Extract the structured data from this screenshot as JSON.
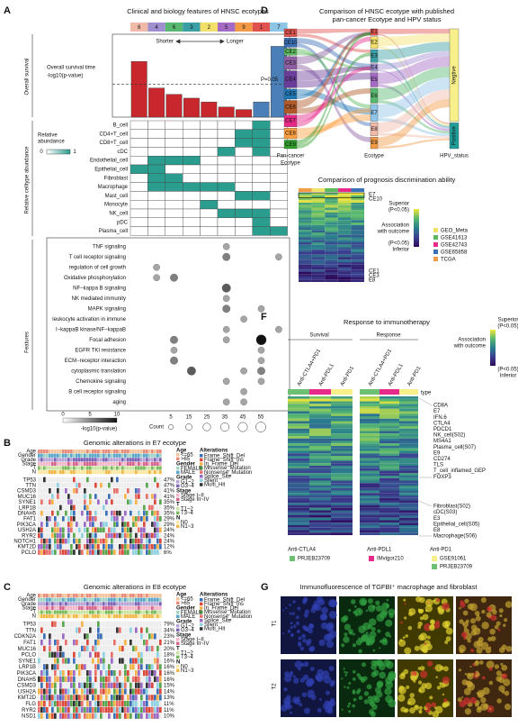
{
  "figure_labels": [
    "A",
    "B",
    "C",
    "D",
    "E",
    "F",
    "G"
  ],
  "a": {
    "title": "Clinical and biology features of HNSC ecotypes",
    "ecotypes": [
      "8",
      "4",
      "6",
      "3",
      "2",
      "5",
      "9",
      "1",
      "7"
    ],
    "ecotype_colors": [
      "#f0b9a8",
      "#9f8fd0",
      "#58b86f",
      "#3a9ea5",
      "#f3e06a",
      "#a46ac4",
      "#f29a45",
      "#e0524e",
      "#8ec4e6"
    ],
    "section_labels": [
      "Overall survival",
      "Relative celltype abundance",
      "Features"
    ],
    "survival": {
      "axis_label": [
        "Overall survival time",
        "-log10(p-value)"
      ],
      "shorter": "Shorter",
      "longer": "Longer",
      "threshold_label": "P=0.05",
      "threshold": 1.3,
      "values": [
        2.2,
        1.15,
        0.9,
        0.75,
        0.6,
        0.4,
        0.3,
        0.6,
        2.8
      ],
      "colors": [
        "#c8282d",
        "#c8282d",
        "#c8282d",
        "#c8282d",
        "#c8282d",
        "#c8282d",
        "#c8282d",
        "#4a7fb8",
        "#4a7fb8"
      ]
    },
    "abundance": {
      "legend_title": [
        "Relative",
        "abundance"
      ],
      "legend_min": 0,
      "legend_max": 1,
      "color": "#2a9d8f",
      "cell_types": [
        "B_cell",
        "CD4+T_cell",
        "CD8+T_cell",
        "cDC",
        "Endothelial_cell",
        "Epithelial_cell",
        "Fibroblast",
        "Macrophage",
        "Mast_cell",
        "Monocyte",
        "NK_cell",
        "pDC",
        "Plasma_cell"
      ],
      "matrix": [
        [
          0,
          0,
          0,
          0,
          0,
          0,
          0,
          1,
          0
        ],
        [
          0,
          0,
          0,
          0,
          0,
          0,
          1,
          1,
          0
        ],
        [
          0,
          0,
          0,
          0,
          0,
          0,
          1,
          1,
          0
        ],
        [
          0,
          0,
          0,
          0,
          0,
          1,
          0,
          1,
          0
        ],
        [
          0,
          1,
          1,
          1,
          0,
          0,
          0,
          0,
          0
        ],
        [
          1,
          1,
          0,
          0,
          0,
          0,
          0,
          0,
          0
        ],
        [
          0,
          1,
          1,
          0,
          0,
          0,
          0,
          0,
          0
        ],
        [
          0,
          1,
          1,
          1,
          1,
          1,
          0,
          0,
          0
        ],
        [
          0,
          0,
          0,
          0,
          0,
          0,
          1,
          1,
          0
        ],
        [
          0,
          0,
          0,
          0,
          1,
          0,
          0,
          0,
          0
        ],
        [
          0,
          0,
          0,
          0,
          0,
          1,
          1,
          1,
          0
        ],
        [
          0,
          0,
          0,
          0,
          0,
          0,
          0,
          1,
          0
        ],
        [
          0,
          0,
          0,
          0,
          0,
          0,
          0,
          1,
          1
        ]
      ]
    },
    "features": {
      "pathways": [
        "TNF signaling",
        "T cell receptor signaling",
        "regulation of cell growth",
        "Oxidative phosphorylation",
        "NF−kappa B signaling",
        "NK mediated immunity",
        "MAPK signaling",
        "leukocyte activation in immune",
        "I−kappaB kinase/NF−kappaB",
        "Focal adhesion",
        "EGFR TKI resistance",
        "ECM−receptor interaction",
        "cytoplasmic translation",
        "Chemokine signaling",
        "B cell receptor signaling",
        "aging"
      ],
      "count": [
        [
          0,
          0,
          0,
          0,
          0,
          15,
          0,
          0,
          0
        ],
        [
          0,
          0,
          0,
          0,
          0,
          25,
          0,
          0,
          15
        ],
        [
          0,
          15,
          0,
          0,
          0,
          0,
          0,
          0,
          0
        ],
        [
          0,
          15,
          25,
          0,
          0,
          0,
          0,
          0,
          0
        ],
        [
          0,
          0,
          0,
          0,
          0,
          35,
          0,
          0,
          0
        ],
        [
          0,
          0,
          0,
          0,
          0,
          15,
          0,
          0,
          0
        ],
        [
          0,
          0,
          0,
          0,
          0,
          25,
          0,
          15,
          0
        ],
        [
          0,
          0,
          0,
          0,
          0,
          0,
          15,
          0,
          0
        ],
        [
          0,
          0,
          0,
          0,
          0,
          15,
          0,
          0,
          15
        ],
        [
          0,
          0,
          25,
          0,
          0,
          15,
          0,
          55,
          0
        ],
        [
          0,
          0,
          15,
          0,
          0,
          0,
          0,
          15,
          0
        ],
        [
          0,
          0,
          25,
          0,
          0,
          0,
          0,
          15,
          0
        ],
        [
          0,
          0,
          0,
          35,
          0,
          0,
          15,
          25,
          0
        ],
        [
          0,
          0,
          0,
          0,
          0,
          15,
          0,
          15,
          0
        ],
        [
          0,
          0,
          0,
          0,
          0,
          0,
          15,
          0,
          0
        ],
        [
          0,
          0,
          0,
          0,
          0,
          15,
          15,
          0,
          0
        ]
      ],
      "legend_title": "-log10(p-value)",
      "shade_ticks": [
        0,
        5,
        10
      ],
      "count_title": "Count",
      "count_ticks": [
        5,
        15,
        25,
        35,
        45,
        55
      ]
    }
  },
  "b": {
    "title": "Genomic alterations in E7 ecotype",
    "tracks": [
      "Age",
      "Gender",
      "Grade",
      "Stage",
      "T",
      "N"
    ],
    "genes": [
      "TP53",
      "TTN",
      "CSMD3",
      "MUC16",
      "SYNE1",
      "LRP1B",
      "DNAH5",
      "FAT1",
      "PIK3CA",
      "USH2A",
      "RYR2",
      "NOTCH1",
      "KMT2D",
      "PCLO"
    ],
    "percents": [
      "47%",
      "47%",
      "41%",
      "41%",
      "35%",
      "35%",
      "35%",
      "29%",
      "29%",
      "24%",
      "24%",
      "24%",
      "12%",
      "6%"
    ],
    "legend": [
      {
        "title": "Age",
        "items": [
          "<=65",
          ">65"
        ],
        "colors": [
          "#f6c49b",
          "#e98a7a"
        ]
      },
      {
        "title": "Gender",
        "items": [
          "FEMALE",
          "MALE"
        ],
        "colors": [
          "#9fd3c7",
          "#58a6c9"
        ]
      },
      {
        "title": "Grade",
        "items": [
          "G1~2",
          "G3~4"
        ],
        "colors": [
          "#b7a4d6",
          "#7d62b5"
        ]
      },
      {
        "title": "Stage",
        "items": [
          "Stage I~II",
          "Stage III~IV"
        ],
        "colors": [
          "#f4b6c9",
          "#d6648f"
        ]
      },
      {
        "title": "T",
        "items": [
          "T1~2",
          "T3~4"
        ],
        "colors": [
          "#c8e3a0",
          "#7cb85c"
        ]
      },
      {
        "title": "N",
        "items": [
          "N0",
          "N1~3"
        ],
        "colors": [
          "#fde7a0",
          "#f3b84a"
        ]
      }
    ],
    "alterations": {
      "title": "Alterations",
      "items": [
        "Frame_Shift_Del",
        "Frame_Shift_Ins",
        "In_Frame_Del",
        "Missense_Mutation",
        "Nonsense_Mutation",
        "Splice_Site",
        "Silent",
        "Multi_Hit"
      ],
      "colors": [
        "#3a6fb5",
        "#d94a3d",
        "#f3b34a",
        "#5aa64f",
        "#e8706a",
        "#9a6ac4",
        "#8fd1e0",
        "#333333"
      ]
    }
  },
  "c": {
    "title": "Genomic alterations in E8 ecotype",
    "tracks": [
      "Age",
      "Gender",
      "Grade",
      "Stage",
      "T",
      "N"
    ],
    "genes": [
      "TP53",
      "TTN",
      "CDKN2A",
      "FAT1",
      "MUC16",
      "PCLO",
      "SYNE1",
      "LRP1B",
      "PIK3CA",
      "DNAH5",
      "CSMD3",
      "USH2A",
      "KMT2D",
      "FLG",
      "RYR2",
      "NSD1"
    ],
    "percents": [
      "79%",
      "34%",
      "23%",
      "21%",
      "20%",
      "18%",
      "16%",
      "16%",
      "16%",
      "16%",
      "15%",
      "14%",
      "13%",
      "11%",
      "11%",
      "10%"
    ],
    "legend": [
      {
        "title": "Age",
        "items": [
          "<=65",
          ">65"
        ],
        "colors": [
          "#f6c49b",
          "#e98a7a"
        ]
      },
      {
        "title": "Gender",
        "items": [
          "FEMALE",
          "MALE"
        ],
        "colors": [
          "#9fd3c7",
          "#58a6c9"
        ]
      },
      {
        "title": "Grade",
        "items": [
          "G1~2",
          "G3~4"
        ],
        "colors": [
          "#b7a4d6",
          "#7d62b5"
        ]
      },
      {
        "title": "Stage",
        "items": [
          "Stage I~II",
          "Stage III~IV"
        ],
        "colors": [
          "#f4b6c9",
          "#d6648f"
        ]
      },
      {
        "title": "T",
        "items": [
          "T1~2",
          "T3~4"
        ],
        "colors": [
          "#c8e3a0",
          "#7cb85c"
        ]
      },
      {
        "title": "N",
        "items": [
          "N0",
          "N1~3"
        ],
        "colors": [
          "#fde7a0",
          "#f3b84a"
        ]
      }
    ],
    "alterations": {
      "title": "Alterations",
      "items": [
        "Frame_Shift_Del",
        "Frame_Shift_Ins",
        "In_Frame_Del",
        "Missense_Mutation",
        "Nonsense_Mutation",
        "Splice_Site",
        "Silent",
        "Multi_Hit"
      ],
      "colors": [
        "#3a6fb5",
        "#d94a3d",
        "#f3b34a",
        "#5aa64f",
        "#e8706a",
        "#9a6ac4",
        "#8fd1e0",
        "#333333"
      ]
    }
  },
  "d": {
    "title": [
      "Comparison of  HNSC ecotype with published",
      "pan-cancer Ecotype and HPV status"
    ],
    "left": [
      "CE1",
      "CE10",
      "CE2",
      "CE3",
      "CE4",
      "CE5",
      "CE6",
      "CE7",
      "CE8",
      "CE9"
    ],
    "left_colors": [
      "#e0524e",
      "#3b6fb6",
      "#5cb85c",
      "#8e5ea2",
      "#6a3d9a",
      "#1f78b4",
      "#b15928",
      "#e7298a",
      "#ff9f40",
      "#33a02c"
    ],
    "middle": [
      "E1",
      "E2",
      "E3",
      "E4",
      "E5",
      "E6",
      "E7",
      "E8",
      "E9"
    ],
    "middle_colors": [
      "#e0524e",
      "#f3e06a",
      "#3a9ea5",
      "#9f8fd0",
      "#a46ac4",
      "#58b86f",
      "#8ec4e6",
      "#f0b9a8",
      "#f29a45"
    ],
    "right": [
      "Negtive",
      "Positive"
    ],
    "right_colors": [
      "#f7f08a",
      "#1f9e9a"
    ],
    "axis_labels": [
      [
        "Pan-cancer",
        "Ecotype"
      ],
      [
        "Ecotype"
      ],
      [
        "HPV_status"
      ]
    ]
  },
  "e": {
    "title": "Comparison of  prognosis discrimination ability",
    "top_labels": [
      "E7",
      "CE10"
    ],
    "bottom_labels": [
      "CE1",
      "CE3",
      "E8"
    ],
    "scale": [
      "Superior",
      "(P<0.05)",
      "Association",
      "with outcome",
      "(P<0.05)",
      "Inferior"
    ],
    "cohorts": [
      "GEO_Meta",
      "GSE41613",
      "GSE42743",
      "GSE65858",
      "TCGA"
    ],
    "cohort_colors": [
      "#f3e06a",
      "#5cb85c",
      "#e7298a",
      "#3b6fb6",
      "#f29a45"
    ]
  },
  "f": {
    "title": "Response to immunotherapy",
    "groups": [
      "Survival",
      "Response"
    ],
    "columns": [
      "Anti-CTLA4+PD1",
      "Anti-PDL1",
      "Anti-PD1",
      "Anti-CTLA4+PD1",
      "Anti-PDL1",
      "Anti-PD1"
    ],
    "column_colors": [
      "#6dbf71",
      "#e7298a",
      "#f7f08a",
      "#6dbf71",
      "#e7298a",
      "#f7f08a"
    ],
    "type_label": "type",
    "rows_top": [
      "CD8A",
      "E7",
      "IFN.6",
      "CTLA4",
      "PDCD1",
      "NK_cell(S02)",
      "MS4A1",
      "Plasma_cell(S07)",
      "E9",
      "CD274",
      "TLS",
      "T_cell_inflamed_GEP",
      "FOXP3"
    ],
    "rows_bottom": [
      "Fibroblast(S02)",
      "cDC(S03)",
      "E3",
      "Epithelial_cell(S05)",
      "E8",
      "Macrophage(S06)"
    ],
    "scale": [
      "Superior",
      "(P<0.05)",
      "Association",
      "with outcome",
      "(P<0.05)",
      "Inferior"
    ],
    "cohort_legend": [
      {
        "title": "Anti-CTLA4",
        "items": [
          "PRJEB23709"
        ],
        "colors": [
          "#6dbf71"
        ]
      },
      {
        "title": "Anti-PDL1",
        "items": [
          "IMvigor210"
        ],
        "colors": [
          "#e7298a"
        ]
      },
      {
        "title": "Anti-PD1",
        "items": [
          "GSE91061",
          "PRJEB23709"
        ],
        "colors": [
          "#f7f08a",
          "#6dbf71"
        ]
      }
    ]
  },
  "g": {
    "title": "Immunofluorescence of TGFBI⁺ macrophage and fibroblast",
    "rows": [
      "T1",
      "T2"
    ]
  }
}
